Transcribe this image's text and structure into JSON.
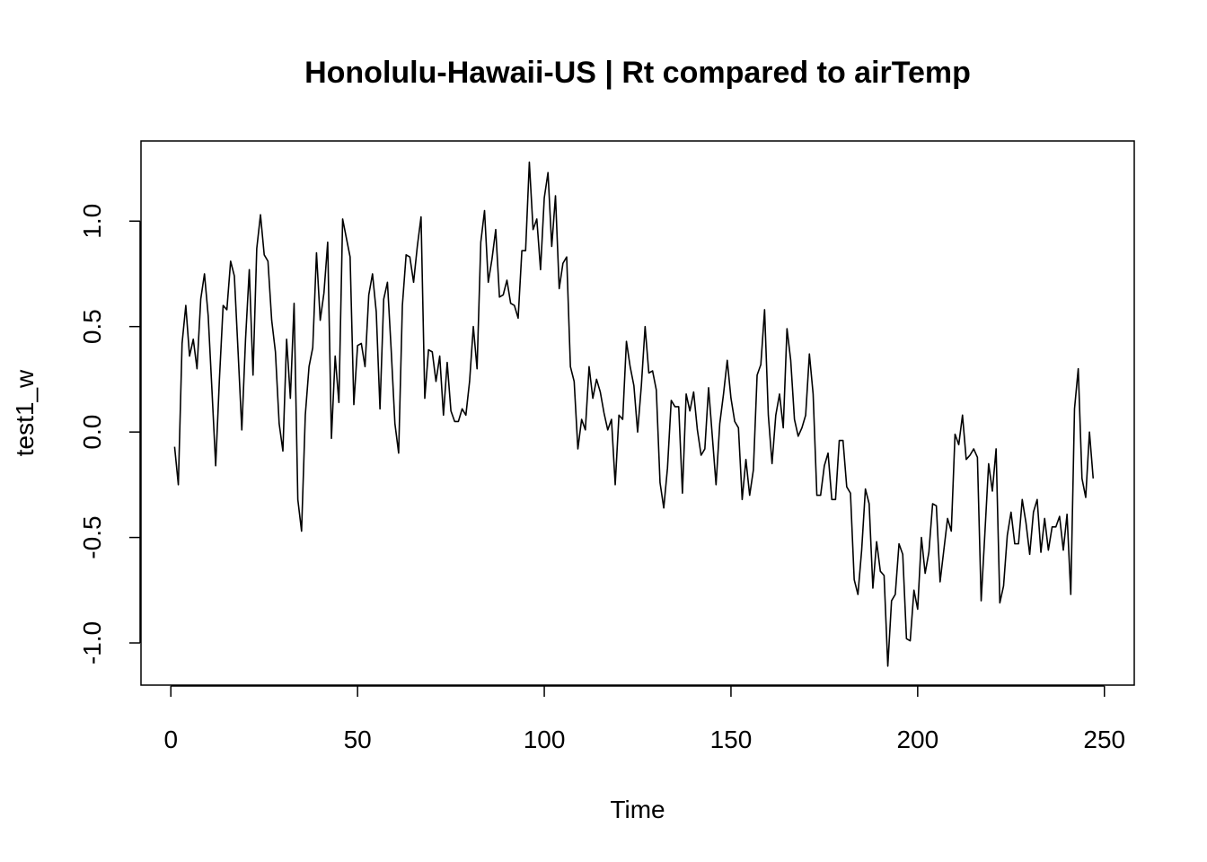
{
  "chart_data": {
    "type": "line",
    "title": "Honolulu-Hawaii-US | Rt compared to airTemp",
    "xlabel": "Time",
    "ylabel": "test1_w",
    "xlim": [
      -8,
      258
    ],
    "ylim": [
      -1.2,
      1.38
    ],
    "x_ticks": [
      0,
      50,
      100,
      150,
      200,
      250
    ],
    "x_tick_labels": [
      "0",
      "50",
      "100",
      "150",
      "200",
      "250"
    ],
    "y_ticks": [
      -1.0,
      -0.5,
      0.0,
      0.5,
      1.0
    ],
    "y_tick_labels": [
      "-1.0",
      "-0.5",
      "0.0",
      "0.5",
      "1.0"
    ],
    "grid": false,
    "series": [
      {
        "color": "#000000",
        "x_start": 1,
        "x_step": 1,
        "values": [
          -0.07,
          -0.25,
          0.42,
          0.6,
          0.36,
          0.44,
          0.3,
          0.63,
          0.75,
          0.55,
          0.2,
          -0.16,
          0.25,
          0.6,
          0.58,
          0.81,
          0.74,
          0.38,
          0.01,
          0.44,
          0.77,
          0.27,
          0.87,
          1.03,
          0.84,
          0.81,
          0.53,
          0.38,
          0.04,
          -0.09,
          0.44,
          0.16,
          0.61,
          -0.32,
          -0.47,
          0.08,
          0.31,
          0.4,
          0.85,
          0.53,
          0.66,
          0.9,
          -0.03,
          0.36,
          0.14,
          1.01,
          0.92,
          0.83,
          0.13,
          0.41,
          0.42,
          0.31,
          0.65,
          0.75,
          0.57,
          0.11,
          0.63,
          0.71,
          0.39,
          0.04,
          -0.1,
          0.6,
          0.84,
          0.83,
          0.71,
          0.88,
          1.02,
          0.16,
          0.39,
          0.38,
          0.24,
          0.36,
          0.08,
          0.33,
          0.1,
          0.05,
          0.05,
          0.11,
          0.08,
          0.24,
          0.5,
          0.3,
          0.9,
          1.05,
          0.71,
          0.82,
          0.96,
          0.64,
          0.65,
          0.72,
          0.61,
          0.6,
          0.54,
          0.86,
          0.86,
          1.28,
          0.96,
          1.01,
          0.77,
          1.11,
          1.23,
          0.88,
          1.12,
          0.68,
          0.8,
          0.83,
          0.31,
          0.24,
          -0.08,
          0.06,
          0.01,
          0.31,
          0.16,
          0.25,
          0.19,
          0.09,
          0.01,
          0.06,
          -0.25,
          0.08,
          0.06,
          0.43,
          0.31,
          0.22,
          0.0,
          0.22,
          0.5,
          0.28,
          0.29,
          0.2,
          -0.24,
          -0.36,
          -0.17,
          0.15,
          0.12,
          0.12,
          -0.29,
          0.18,
          0.1,
          0.19,
          0.01,
          -0.11,
          -0.08,
          0.21,
          -0.02,
          -0.25,
          0.04,
          0.18,
          0.34,
          0.16,
          0.05,
          0.02,
          -0.32,
          -0.13,
          -0.3,
          -0.18,
          0.27,
          0.32,
          0.58,
          0.08,
          -0.15,
          0.08,
          0.18,
          0.02,
          0.49,
          0.34,
          0.06,
          -0.02,
          0.02,
          0.08,
          0.37,
          0.18,
          -0.3,
          -0.3,
          -0.16,
          -0.1,
          -0.32,
          -0.32,
          -0.04,
          -0.04,
          -0.26,
          -0.29,
          -0.7,
          -0.77,
          -0.56,
          -0.27,
          -0.34,
          -0.74,
          -0.52,
          -0.66,
          -0.68,
          -1.11,
          -0.8,
          -0.77,
          -0.53,
          -0.58,
          -0.98,
          -0.99,
          -0.75,
          -0.84,
          -0.5,
          -0.67,
          -0.57,
          -0.34,
          -0.35,
          -0.71,
          -0.56,
          -0.41,
          -0.47,
          -0.01,
          -0.06,
          0.08,
          -0.13,
          -0.11,
          -0.08,
          -0.12,
          -0.8,
          -0.48,
          -0.15,
          -0.28,
          -0.08,
          -0.81,
          -0.73,
          -0.49,
          -0.38,
          -0.53,
          -0.53,
          -0.32,
          -0.43,
          -0.58,
          -0.38,
          -0.32,
          -0.57,
          -0.41,
          -0.56,
          -0.45,
          -0.45,
          -0.4,
          -0.56,
          -0.39,
          -0.77,
          0.11,
          0.3,
          -0.22,
          -0.31,
          0.0,
          -0.22
        ]
      }
    ]
  }
}
